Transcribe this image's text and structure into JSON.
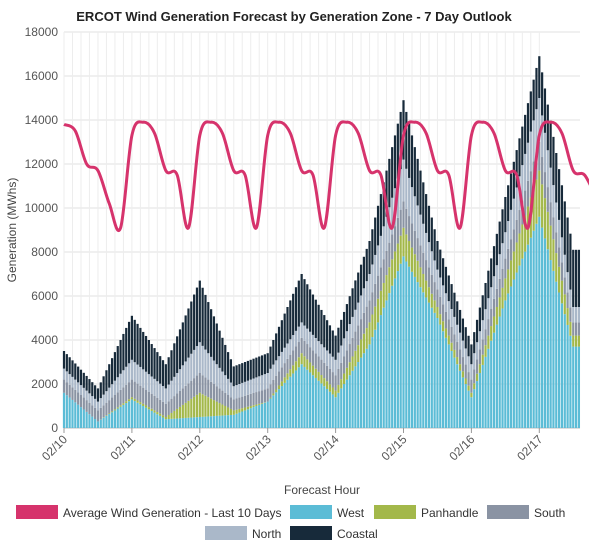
{
  "chart_data": {
    "type": "area",
    "title": "ERCOT Wind Generation Forecast by Generation Zone - 7 Day Outlook",
    "xlabel": "Forecast Hour",
    "ylabel": "Generation (MWhs)",
    "ylim": [
      0,
      18000
    ],
    "y_ticks": [
      0,
      2000,
      4000,
      6000,
      8000,
      10000,
      12000,
      14000,
      16000,
      18000
    ],
    "x_ticks": [
      "02/10",
      "02/11",
      "02/12",
      "02/13",
      "02/14",
      "02/15",
      "02/16",
      "02/17"
    ],
    "stacked": true,
    "grid": true,
    "legend_position": "bottom",
    "colors": {
      "average": "#d6336c",
      "west": "#5bbcd6",
      "panhandle": "#a3b84a",
      "south": "#8a93a3",
      "north": "#aab8c9",
      "coastal": "#172a3a"
    },
    "series": [
      {
        "name": "Average Wind Generation - Last 10 Days",
        "kind": "line",
        "x": [
          "02/10 00:00",
          "02/10 04:00",
          "02/10 08:00",
          "02/10 12:00",
          "02/10 16:00",
          "02/10 20:00",
          "02/11 00:00",
          "02/11 04:00",
          "02/11 08:00",
          "02/11 12:00",
          "02/11 16:00",
          "02/11 20:00",
          "02/12 00:00",
          "02/12 04:00",
          "02/12 08:00",
          "02/12 12:00",
          "02/12 16:00",
          "02/12 20:00",
          "02/13 00:00",
          "02/13 04:00",
          "02/13 08:00",
          "02/13 12:00",
          "02/13 16:00",
          "02/13 20:00",
          "02/14 00:00",
          "02/14 04:00",
          "02/14 08:00",
          "02/14 12:00",
          "02/14 16:00",
          "02/14 20:00",
          "02/15 00:00",
          "02/15 04:00",
          "02/15 08:00",
          "02/15 12:00",
          "02/15 16:00",
          "02/15 20:00",
          "02/16 00:00",
          "02/16 04:00",
          "02/16 08:00",
          "02/16 12:00",
          "02/16 16:00",
          "02/16 20:00",
          "02/17 00:00",
          "02/17 04:00",
          "02/17 08:00",
          "02/17 12:00",
          "02/17 16:00",
          "02/17 20:00"
        ],
        "values": [
          13800,
          13500,
          12000,
          11700,
          10200,
          9100,
          13300,
          13900,
          13400,
          11700,
          11500,
          9100,
          13300,
          13900,
          13400,
          11700,
          11500,
          9100,
          13300,
          13900,
          13400,
          11700,
          11500,
          9100,
          13300,
          13900,
          13400,
          11700,
          11500,
          9100,
          13300,
          13900,
          13400,
          11700,
          11500,
          9100,
          13300,
          13900,
          13400,
          11700,
          11500,
          9100,
          13300,
          13900,
          13400,
          11700,
          11500,
          10500
        ]
      },
      {
        "name": "West",
        "kind": "stacked",
        "x": [
          "02/10 00:00",
          "02/10 12:00",
          "02/11 00:00",
          "02/11 12:00",
          "02/12 00:00",
          "02/12 12:00",
          "02/13 00:00",
          "02/13 12:00",
          "02/14 00:00",
          "02/14 12:00",
          "02/15 00:00",
          "02/15 12:00",
          "02/16 00:00",
          "02/16 12:00",
          "02/17 00:00",
          "02/17 12:00"
        ],
        "values": [
          1600,
          300,
          1300,
          400,
          500,
          600,
          1200,
          2900,
          1400,
          3800,
          7800,
          5000,
          1400,
          5800,
          9600,
          3700
        ]
      },
      {
        "name": "Panhandle",
        "kind": "stacked",
        "x": [
          "02/10 00:00",
          "02/10 12:00",
          "02/11 00:00",
          "02/11 12:00",
          "02/12 00:00",
          "02/12 12:00",
          "02/13 00:00",
          "02/13 12:00",
          "02/14 00:00",
          "02/14 12:00",
          "02/15 00:00",
          "02/15 12:00",
          "02/16 00:00",
          "02/16 12:00",
          "02/17 00:00",
          "02/17 12:00"
        ],
        "values": [
          0,
          0,
          100,
          100,
          1100,
          200,
          0,
          500,
          300,
          1000,
          1300,
          500,
          200,
          1000,
          2100,
          500
        ]
      },
      {
        "name": "South",
        "kind": "stacked",
        "x": [
          "02/10 00:00",
          "02/10 12:00",
          "02/11 00:00",
          "02/11 12:00",
          "02/12 00:00",
          "02/12 12:00",
          "02/13 00:00",
          "02/13 12:00",
          "02/14 00:00",
          "02/14 12:00",
          "02/15 00:00",
          "02/15 12:00",
          "02/16 00:00",
          "02/16 12:00",
          "02/17 00:00",
          "02/17 12:00"
        ],
        "values": [
          600,
          500,
          800,
          600,
          900,
          500,
          600,
          700,
          700,
          1000,
          1200,
          800,
          600,
          900,
          1300,
          600
        ]
      },
      {
        "name": "North",
        "kind": "stacked",
        "x": [
          "02/10 00:00",
          "02/10 12:00",
          "02/11 00:00",
          "02/11 12:00",
          "02/12 00:00",
          "02/12 12:00",
          "02/13 00:00",
          "02/13 12:00",
          "02/14 00:00",
          "02/14 12:00",
          "02/15 00:00",
          "02/15 12:00",
          "02/16 00:00",
          "02/16 12:00",
          "02/17 00:00",
          "02/17 12:00"
        ],
        "values": [
          500,
          400,
          900,
          700,
          1400,
          600,
          700,
          700,
          700,
          1200,
          1900,
          900,
          700,
          1200,
          2000,
          700
        ]
      },
      {
        "name": "Coastal",
        "kind": "stacked",
        "x": [
          "02/10 00:00",
          "02/10 12:00",
          "02/11 00:00",
          "02/11 12:00",
          "02/12 00:00",
          "02/12 12:00",
          "02/13 00:00",
          "02/13 12:00",
          "02/14 00:00",
          "02/14 12:00",
          "02/15 00:00",
          "02/15 12:00",
          "02/16 00:00",
          "02/16 12:00",
          "02/17 00:00",
          "02/17 12:00"
        ],
        "values": [
          800,
          600,
          2000,
          1100,
          2800,
          900,
          900,
          2200,
          1100,
          1500,
          2700,
          1300,
          900,
          1600,
          1900,
          2600
        ]
      }
    ]
  }
}
